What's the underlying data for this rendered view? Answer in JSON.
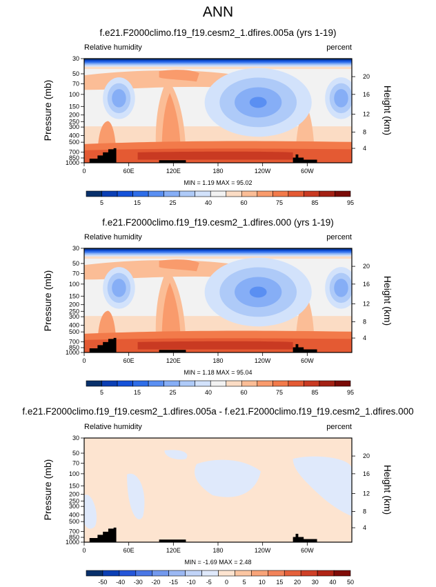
{
  "figure": {
    "title": "ANN"
  },
  "colors": {
    "abs_scale": [
      "#08306b",
      "#0b3fb4",
      "#1552d9",
      "#2e6de8",
      "#5a8ff2",
      "#86aef6",
      "#aecaf8",
      "#d2e2fb",
      "#f2f2f2",
      "#fbdcc4",
      "#fbbd96",
      "#f99b6c",
      "#f27a4a",
      "#e45a33",
      "#c93a22",
      "#a42114",
      "#7a0b07"
    ],
    "diff_scale": [
      "#08306b",
      "#0b3fb4",
      "#2556d9",
      "#4a77e6",
      "#7399ee",
      "#9bb8f3",
      "#c1d4f8",
      "#dfe9fb",
      "#fde4d0",
      "#fbc6a2",
      "#f8a479",
      "#f2835a",
      "#e5613c",
      "#cf4027",
      "#b02415",
      "#800c08"
    ],
    "topo": "#000000",
    "axis": "#000000"
  },
  "panels": [
    {
      "title": "f.e21.F2000climo.f19_f19.cesm2_1.dfires.005a (yrs 1-19)",
      "left_label": "Relative humidity",
      "right_label": "percent",
      "ylabel": "Pressure (mb)",
      "y2label": "Height (km)",
      "stats": "MIN =   1.19  MAX =  95.02",
      "kind": "abs"
    },
    {
      "title": "f.e21.F2000climo.f19_f19.cesm2_1.dfires.000 (yrs 1-19)",
      "left_label": "Relative humidity",
      "right_label": "percent",
      "ylabel": "Pressure (mb)",
      "y2label": "Height (km)",
      "stats": "MIN =   1.18  MAX =  95.04",
      "kind": "abs"
    },
    {
      "title": "f.e21.F2000climo.f19_f19.cesm2_1.dfires.005a - f.e21.F2000climo.f19_f19.cesm2_1.dfires.000",
      "left_label": "Relative humidity",
      "right_label": "percent",
      "ylabel": "Pressure (mb)",
      "y2label": "Height (km)",
      "stats": "MIN =  -1.69  MAX =   2.48",
      "kind": "diff"
    }
  ],
  "colorbars": [
    {
      "labels": [
        "5",
        "15",
        "25",
        "40",
        "60",
        "75",
        "85",
        "95"
      ]
    },
    {
      "labels": [
        "5",
        "15",
        "25",
        "40",
        "60",
        "75",
        "85",
        "95"
      ]
    },
    {
      "labels": [
        "-50",
        "-40",
        "-30",
        "-20",
        "-15",
        "-10",
        "-5",
        "0",
        "5",
        "10",
        "15",
        "20",
        "30",
        "40",
        "50"
      ]
    }
  ],
  "chart_data": [
    {
      "type": "heatmap",
      "title": "f.e21.F2000climo.f19_f19.cesm2_1.dfires.005a (yrs 1-19)",
      "xlabel": "",
      "ylabel": "Pressure (mb)",
      "y2label": "Height (km)",
      "x_ticks": [
        "0",
        "60E",
        "120E",
        "180",
        "120W",
        "60W"
      ],
      "y_ticks": [
        "30",
        "50",
        "70",
        "100",
        "150",
        "200",
        "250",
        "300",
        "400",
        "500",
        "700",
        "850",
        "1000"
      ],
      "y2_ticks": [
        "20",
        "16",
        "12",
        "8",
        "4"
      ],
      "ylim": [
        1000,
        30
      ],
      "levels": [
        5,
        10,
        15,
        20,
        25,
        30,
        40,
        50,
        60,
        65,
        70,
        75,
        80,
        85,
        90,
        95
      ],
      "min": 1.19,
      "max": 95.02,
      "units": "percent"
    },
    {
      "type": "heatmap",
      "title": "f.e21.F2000climo.f19_f19.cesm2_1.dfires.000 (yrs 1-19)",
      "xlabel": "",
      "ylabel": "Pressure (mb)",
      "y2label": "Height (km)",
      "x_ticks": [
        "0",
        "60E",
        "120E",
        "180",
        "120W",
        "60W"
      ],
      "y_ticks": [
        "30",
        "50",
        "70",
        "100",
        "150",
        "200",
        "250",
        "300",
        "400",
        "500",
        "700",
        "850",
        "1000"
      ],
      "y2_ticks": [
        "20",
        "16",
        "12",
        "8",
        "4"
      ],
      "ylim": [
        1000,
        30
      ],
      "levels": [
        5,
        10,
        15,
        20,
        25,
        30,
        40,
        50,
        60,
        65,
        70,
        75,
        80,
        85,
        90,
        95
      ],
      "min": 1.18,
      "max": 95.04,
      "units": "percent"
    },
    {
      "type": "heatmap",
      "title": "f.e21.F2000climo.f19_f19.cesm2_1.dfires.005a - f.e21.F2000climo.f19_f19.cesm2_1.dfires.000",
      "xlabel": "",
      "ylabel": "Pressure (mb)",
      "y2label": "Height (km)",
      "x_ticks": [
        "0",
        "60E",
        "120E",
        "180",
        "120W",
        "60W"
      ],
      "y_ticks": [
        "30",
        "50",
        "70",
        "100",
        "150",
        "200",
        "250",
        "300",
        "400",
        "500",
        "700",
        "850",
        "1000"
      ],
      "y2_ticks": [
        "20",
        "16",
        "12",
        "8",
        "4"
      ],
      "ylim": [
        1000,
        30
      ],
      "levels": [
        -50,
        -40,
        -30,
        -20,
        -15,
        -10,
        -5,
        0,
        5,
        10,
        15,
        20,
        30,
        40,
        50
      ],
      "min": -1.69,
      "max": 2.48,
      "units": "percent"
    }
  ]
}
